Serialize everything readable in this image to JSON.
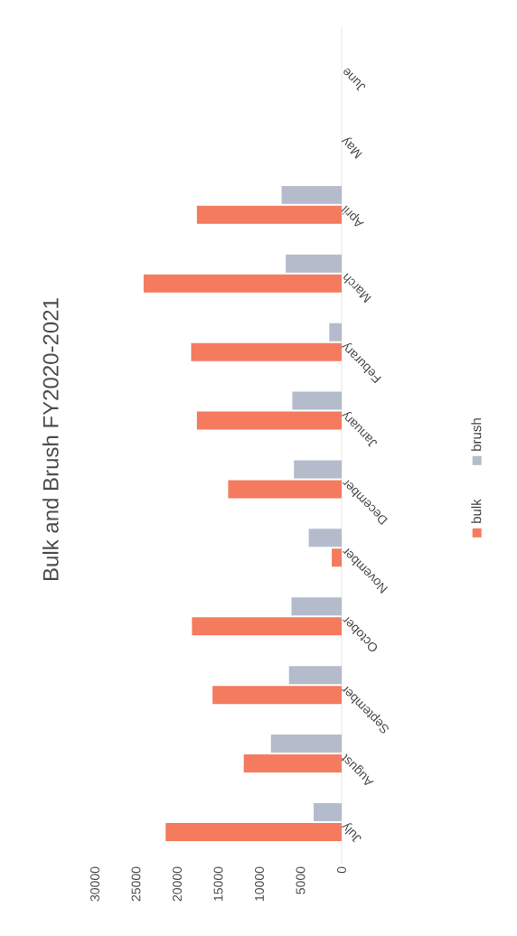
{
  "chart_data": {
    "type": "bar",
    "title": "Bulk and Brush FY2020-2021",
    "orientation": "horizontal",
    "categories": [
      "June",
      "May",
      "April",
      "March",
      "Feburary",
      "January",
      "December",
      "November",
      "October",
      "September",
      "August",
      "July"
    ],
    "series": [
      {
        "name": "bulk",
        "color": "#f47b5e",
        "values": [
          null,
          null,
          17600,
          24100,
          18300,
          17600,
          13800,
          1200,
          18200,
          15700,
          11900,
          21400
        ]
      },
      {
        "name": "brush",
        "color": "#b4bccb",
        "values": [
          null,
          null,
          7300,
          6800,
          1500,
          6000,
          5800,
          4000,
          6100,
          6400,
          8600,
          3400
        ]
      }
    ],
    "xlim": [
      30000,
      0
    ],
    "xticks": [
      0,
      5000,
      10000,
      15000,
      20000,
      25000,
      30000
    ],
    "grid": false,
    "legend": "right"
  }
}
